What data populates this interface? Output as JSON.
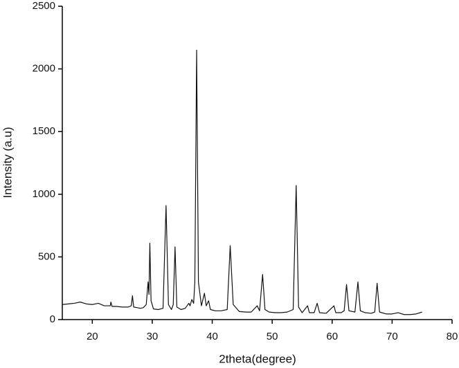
{
  "chart_data": {
    "type": "line",
    "x_label": "2theta(degree)",
    "y_label": "Intensity (a.u)",
    "x": [
      15,
      16,
      17,
      18,
      19,
      20,
      21,
      22,
      23,
      23.1,
      23.3,
      24,
      25,
      26,
      26.5,
      26.7,
      26.9,
      27.5,
      28,
      28.5,
      29,
      29.3,
      29.45,
      29.6,
      29.8,
      30.2,
      31,
      31.8,
      32.3,
      32.7,
      33.2,
      33.5,
      33.8,
      34.1,
      34.8,
      35.5,
      36.1,
      36.3,
      36.6,
      36.9,
      37.1,
      37.4,
      37.7,
      38.2,
      38.7,
      39.0,
      39.4,
      39.7,
      40.5,
      41.5,
      42.5,
      43.0,
      43.5,
      44.5,
      45.5,
      46.5,
      47.5,
      47.9,
      48.4,
      48.8,
      49.5,
      50.5,
      51.5,
      52.5,
      53.5,
      54.0,
      54.4,
      55.0,
      55.9,
      56.2,
      57,
      57.5,
      57.9,
      59,
      60.3,
      60.6,
      61.5,
      62.0,
      62.4,
      62.8,
      63.8,
      64.3,
      64.7,
      65.5,
      66.5,
      67.1,
      67.5,
      67.9,
      69,
      70,
      71,
      72,
      73,
      74,
      75
    ],
    "values": [
      120,
      125,
      130,
      140,
      125,
      120,
      130,
      110,
      110,
      140,
      105,
      105,
      100,
      100,
      110,
      190,
      100,
      95,
      90,
      95,
      120,
      300,
      200,
      610,
      150,
      85,
      80,
      90,
      910,
      120,
      80,
      120,
      580,
      100,
      80,
      90,
      130,
      110,
      160,
      130,
      300,
      2150,
      300,
      110,
      210,
      110,
      150,
      80,
      70,
      70,
      80,
      590,
      120,
      65,
      60,
      60,
      110,
      70,
      360,
      80,
      60,
      55,
      55,
      60,
      80,
      1070,
      100,
      55,
      110,
      55,
      55,
      130,
      55,
      50,
      110,
      55,
      55,
      70,
      280,
      70,
      60,
      300,
      70,
      55,
      50,
      60,
      290,
      60,
      45,
      45,
      55,
      40,
      40,
      45,
      60
    ],
    "color": "#111111",
    "xlim": [
      15,
      80
    ],
    "xticks": [
      20,
      30,
      40,
      50,
      60,
      70,
      80
    ],
    "ylim": [
      0,
      2500
    ],
    "yticks": [
      0,
      500,
      1000,
      1500,
      2000,
      2500
    ]
  }
}
